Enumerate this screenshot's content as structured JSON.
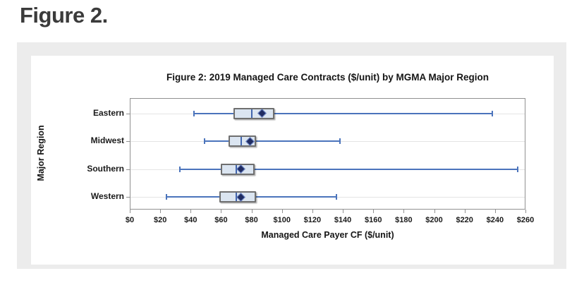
{
  "page": {
    "heading": "Figure 2."
  },
  "chart_data": {
    "type": "boxplot",
    "orientation": "horizontal",
    "title": "Figure 2: 2019 Managed Care Contracts ($/unit) by MGMA Major Region",
    "xlabel": "Managed Care Payer CF ($/unit)",
    "ylabel": "Major Region",
    "xlim": [
      0,
      260
    ],
    "xtick_step": 20,
    "xtick_labels": [
      "$0",
      "$20",
      "$40",
      "$60",
      "$80",
      "$100",
      "$120",
      "$140",
      "$160",
      "$180",
      "$200",
      "$220",
      "$240",
      "$260"
    ],
    "grid": "horizontal-row-lines",
    "legend": "none",
    "categories": [
      "Eastern",
      "Midwest",
      "Southern",
      "Western"
    ],
    "series": [
      {
        "region": "Eastern",
        "min": 42,
        "q1": 68,
        "median": 80,
        "mean": 87,
        "q3": 95,
        "max": 238
      },
      {
        "region": "Midwest",
        "min": 49,
        "q1": 65,
        "median": 73,
        "mean": 79,
        "q3": 83,
        "max": 138
      },
      {
        "region": "Southern",
        "min": 33,
        "q1": 60,
        "median": 70,
        "mean": 73,
        "q3": 82,
        "max": 255
      },
      {
        "region": "Western",
        "min": 24,
        "q1": 59,
        "median": 70,
        "mean": 73,
        "q3": 83,
        "max": 136
      }
    ],
    "colors": {
      "panel_background": "#ececec",
      "chart_background": "#ffffff",
      "box_fill": "#dbe5f1",
      "box_border": "#6f6f6f",
      "whisker": "#4b74bc",
      "median": "#4165ae",
      "mean_marker": "#202c62",
      "mean_marker_border": "#6c86c8",
      "gridline": "#e4e4e4",
      "axis": "#919191",
      "text": "#1a1a1a"
    }
  }
}
